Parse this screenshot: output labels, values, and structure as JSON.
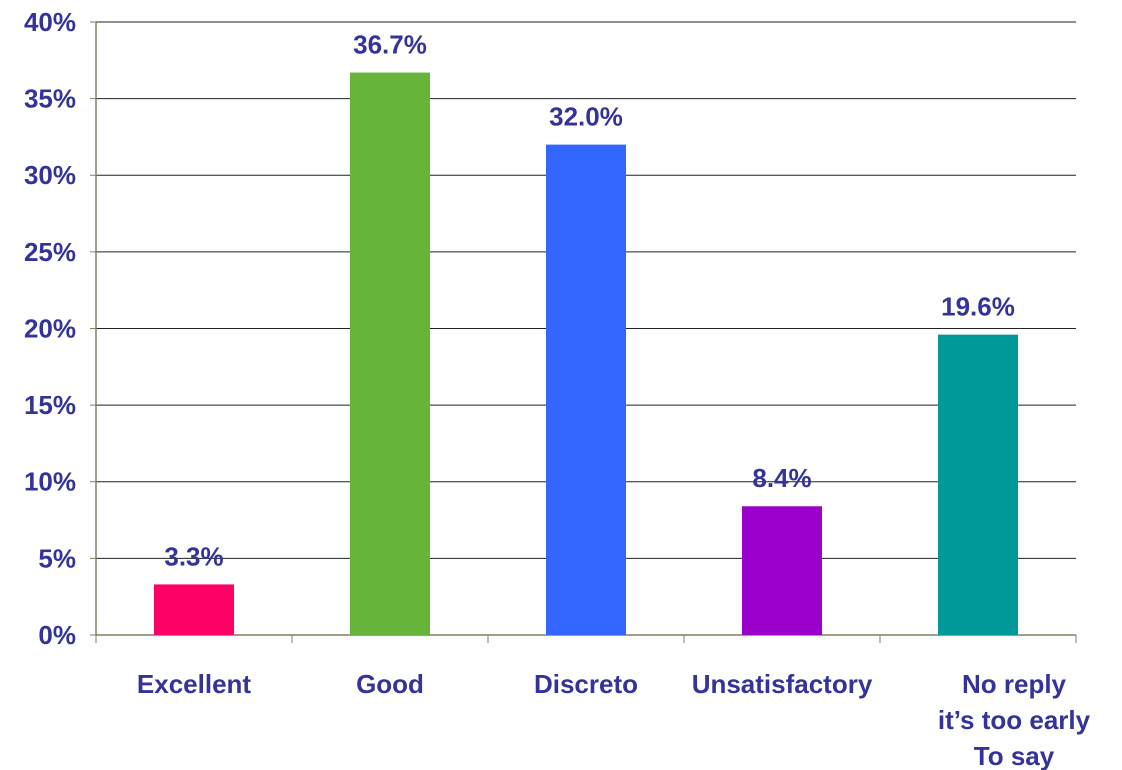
{
  "chart_data": {
    "type": "bar",
    "categories": [
      "Excellent",
      "Good",
      "Discreto",
      "Unsatisfactory",
      "No reply\nit’s too early\nTo say"
    ],
    "values": [
      3.3,
      36.7,
      32.0,
      8.4,
      19.6
    ],
    "value_labels": [
      "3.3%",
      "36.7%",
      "32.0%",
      "8.4%",
      "19.6%"
    ],
    "colors": [
      "#ff0066",
      "#66b53a",
      "#3366ff",
      "#9900cc",
      "#009999"
    ],
    "ylim": [
      0,
      40
    ],
    "yticks": [
      {
        "value": 0,
        "label": "0%"
      },
      {
        "value": 5,
        "label": "5%"
      },
      {
        "value": 10,
        "label": "10%"
      },
      {
        "value": 15,
        "label": "15%"
      },
      {
        "value": 20,
        "label": "20%"
      },
      {
        "value": 25,
        "label": "25%"
      },
      {
        "value": 30,
        "label": "30%"
      },
      {
        "value": 35,
        "label": "35%"
      },
      {
        "value": 40,
        "label": "40%"
      }
    ],
    "grid": true
  }
}
